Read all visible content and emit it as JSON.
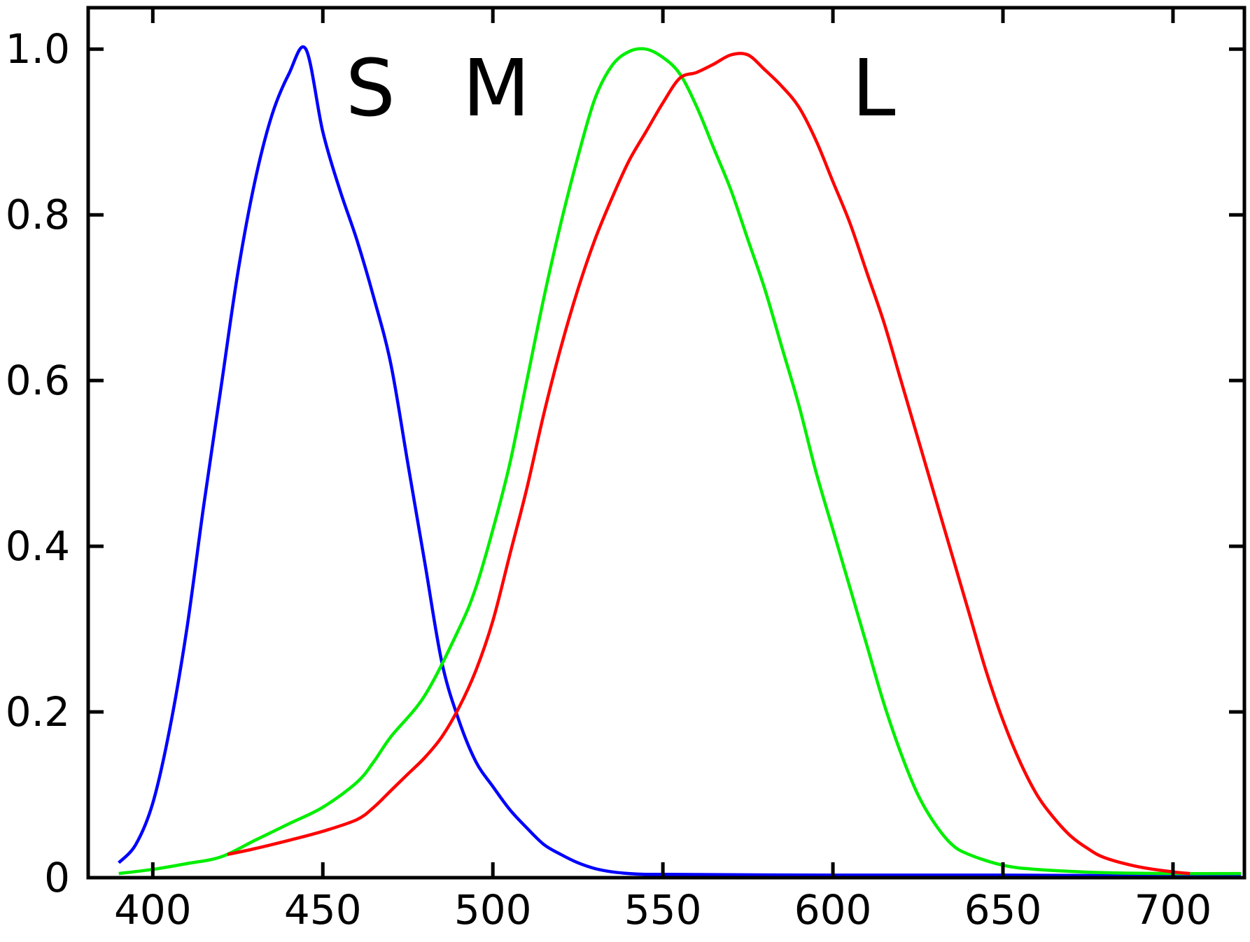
{
  "chart_data": {
    "type": "line",
    "title": "",
    "xlabel": "",
    "ylabel": "",
    "xlim": [
      381,
      721
    ],
    "ylim": [
      0,
      1.05
    ],
    "grid": false,
    "xticks": [
      400,
      450,
      500,
      550,
      600,
      650,
      700
    ],
    "xtick_labels": [
      "400",
      "450",
      "500",
      "550",
      "600",
      "650",
      "700"
    ],
    "yticks": [
      0,
      0.2,
      0.4,
      0.6,
      0.8,
      1.0
    ],
    "ytick_labels": [
      "0",
      "0.2",
      "0.4",
      "0.6",
      "0.8",
      "1.0"
    ],
    "series": [
      {
        "name": "S",
        "color": "#0000ff",
        "points": [
          [
            390,
            0.018
          ],
          [
            395,
            0.04
          ],
          [
            400,
            0.09
          ],
          [
            405,
            0.18
          ],
          [
            410,
            0.3
          ],
          [
            415,
            0.45
          ],
          [
            420,
            0.59
          ],
          [
            425,
            0.73
          ],
          [
            430,
            0.84
          ],
          [
            435,
            0.92
          ],
          [
            440,
            0.97
          ],
          [
            445,
            1.0
          ],
          [
            450,
            0.9
          ],
          [
            455,
            0.83
          ],
          [
            460,
            0.77
          ],
          [
            465,
            0.7
          ],
          [
            470,
            0.62
          ],
          [
            475,
            0.5
          ],
          [
            480,
            0.38
          ],
          [
            485,
            0.26
          ],
          [
            490,
            0.19
          ],
          [
            495,
            0.14
          ],
          [
            500,
            0.11
          ],
          [
            505,
            0.082
          ],
          [
            510,
            0.06
          ],
          [
            515,
            0.04
          ],
          [
            520,
            0.028
          ],
          [
            525,
            0.018
          ],
          [
            530,
            0.011
          ],
          [
            535,
            0.007
          ],
          [
            540,
            0.005
          ],
          [
            545,
            0.004
          ],
          [
            550,
            0.004
          ],
          [
            600,
            0.003
          ],
          [
            650,
            0.003
          ],
          [
            700,
            0.002
          ],
          [
            720,
            0.002
          ]
        ]
      },
      {
        "name": "M",
        "color": "#00ee00",
        "points": [
          [
            390,
            0.005
          ],
          [
            400,
            0.01
          ],
          [
            410,
            0.017
          ],
          [
            420,
            0.025
          ],
          [
            430,
            0.045
          ],
          [
            440,
            0.065
          ],
          [
            450,
            0.085
          ],
          [
            460,
            0.115
          ],
          [
            465,
            0.14
          ],
          [
            470,
            0.17
          ],
          [
            480,
            0.22
          ],
          [
            490,
            0.3
          ],
          [
            495,
            0.35
          ],
          [
            500,
            0.42
          ],
          [
            505,
            0.5
          ],
          [
            510,
            0.6
          ],
          [
            515,
            0.7
          ],
          [
            520,
            0.79
          ],
          [
            525,
            0.87
          ],
          [
            530,
            0.94
          ],
          [
            535,
            0.98
          ],
          [
            540,
            0.997
          ],
          [
            545,
            1.0
          ],
          [
            550,
            0.99
          ],
          [
            555,
            0.97
          ],
          [
            560,
            0.93
          ],
          [
            565,
            0.88
          ],
          [
            570,
            0.83
          ],
          [
            575,
            0.77
          ],
          [
            580,
            0.71
          ],
          [
            585,
            0.64
          ],
          [
            590,
            0.57
          ],
          [
            595,
            0.49
          ],
          [
            600,
            0.42
          ],
          [
            605,
            0.35
          ],
          [
            610,
            0.28
          ],
          [
            615,
            0.21
          ],
          [
            620,
            0.15
          ],
          [
            625,
            0.1
          ],
          [
            630,
            0.065
          ],
          [
            635,
            0.04
          ],
          [
            640,
            0.028
          ],
          [
            650,
            0.015
          ],
          [
            660,
            0.01
          ],
          [
            680,
            0.006
          ],
          [
            700,
            0.005
          ],
          [
            720,
            0.005
          ]
        ]
      },
      {
        "name": "L",
        "color": "#ff0000",
        "points": [
          [
            422,
            0.028
          ],
          [
            430,
            0.035
          ],
          [
            440,
            0.045
          ],
          [
            450,
            0.056
          ],
          [
            460,
            0.07
          ],
          [
            465,
            0.085
          ],
          [
            470,
            0.105
          ],
          [
            475,
            0.125
          ],
          [
            480,
            0.145
          ],
          [
            485,
            0.17
          ],
          [
            490,
            0.205
          ],
          [
            495,
            0.25
          ],
          [
            500,
            0.31
          ],
          [
            505,
            0.39
          ],
          [
            510,
            0.47
          ],
          [
            515,
            0.56
          ],
          [
            520,
            0.64
          ],
          [
            525,
            0.71
          ],
          [
            530,
            0.77
          ],
          [
            535,
            0.82
          ],
          [
            540,
            0.865
          ],
          [
            545,
            0.9
          ],
          [
            550,
            0.935
          ],
          [
            555,
            0.965
          ],
          [
            560,
            0.972
          ],
          [
            565,
            0.982
          ],
          [
            570,
            0.993
          ],
          [
            575,
            0.993
          ],
          [
            580,
            0.975
          ],
          [
            585,
            0.955
          ],
          [
            590,
            0.93
          ],
          [
            595,
            0.89
          ],
          [
            600,
            0.84
          ],
          [
            605,
            0.79
          ],
          [
            610,
            0.73
          ],
          [
            615,
            0.67
          ],
          [
            620,
            0.6
          ],
          [
            625,
            0.53
          ],
          [
            630,
            0.46
          ],
          [
            635,
            0.39
          ],
          [
            640,
            0.32
          ],
          [
            645,
            0.25
          ],
          [
            650,
            0.19
          ],
          [
            655,
            0.14
          ],
          [
            660,
            0.1
          ],
          [
            665,
            0.072
          ],
          [
            670,
            0.05
          ],
          [
            675,
            0.035
          ],
          [
            680,
            0.024
          ],
          [
            690,
            0.013
          ],
          [
            700,
            0.007
          ],
          [
            705,
            0.005
          ]
        ]
      }
    ],
    "annotations": [
      {
        "text": "S",
        "x": 464,
        "y": 0.92
      },
      {
        "text": "M",
        "x": 501,
        "y": 0.92
      },
      {
        "text": "L",
        "x": 612,
        "y": 0.92
      }
    ]
  }
}
